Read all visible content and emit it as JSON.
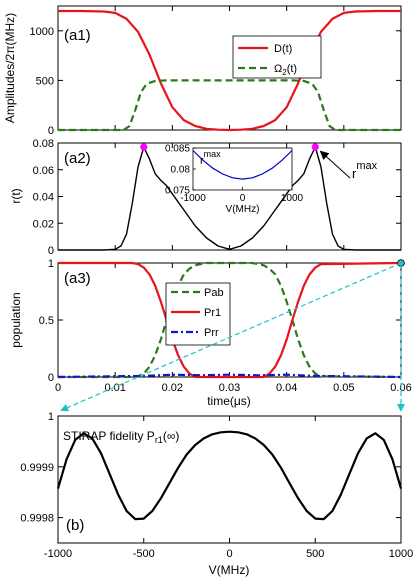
{
  "chart_data": [
    {
      "type": "line",
      "panel_label": "(a1)",
      "ylabel": "Amplitudes/2π(MHz)",
      "xlim": [
        0,
        0.06
      ],
      "ylim": [
        0,
        1250
      ],
      "yticks": [
        "0",
        "500",
        "1000"
      ],
      "legend": "top-right",
      "series": [
        {
          "name": "D(t)",
          "color": "#e8141b",
          "style": "solid",
          "x": [
            0,
            0.004,
            0.008,
            0.01,
            0.012,
            0.014,
            0.016,
            0.018,
            0.02,
            0.022,
            0.024,
            0.026,
            0.028,
            0.03,
            0.032,
            0.034,
            0.036,
            0.038,
            0.04,
            0.042,
            0.044,
            0.046,
            0.048,
            0.05,
            0.052,
            0.056,
            0.06
          ],
          "y": [
            1200,
            1200,
            1195,
            1180,
            1120,
            990,
            760,
            470,
            230,
            100,
            40,
            12,
            3,
            0,
            3,
            12,
            40,
            100,
            230,
            470,
            760,
            990,
            1120,
            1180,
            1195,
            1200,
            1200
          ]
        },
        {
          "name": "Ω2(t)",
          "color": "#2a7a1a",
          "style": "dashed",
          "x": [
            0,
            0.0115,
            0.0125,
            0.0135,
            0.0145,
            0.0155,
            0.017,
            0.019,
            0.041,
            0.043,
            0.0445,
            0.0455,
            0.0465,
            0.0475,
            0.0485,
            0.06
          ],
          "y": [
            0,
            0,
            40,
            200,
            380,
            465,
            495,
            500,
            500,
            495,
            465,
            380,
            200,
            40,
            0,
            0
          ]
        }
      ]
    },
    {
      "type": "line",
      "panel_label": "(a2)",
      "ylabel": "r(t)",
      "xlim": [
        0,
        0.06
      ],
      "ylim": [
        0,
        0.08
      ],
      "yticks": [
        "0",
        "0.02",
        "0.04",
        "0.06",
        "0.08"
      ],
      "series": [
        {
          "name": "",
          "color": "#000000",
          "style": "solid",
          "x": [
            0,
            0.008,
            0.01,
            0.011,
            0.012,
            0.013,
            0.014,
            0.015,
            0.016,
            0.017,
            0.018,
            0.019,
            0.02,
            0.022,
            0.024,
            0.026,
            0.028,
            0.03,
            0.032,
            0.034,
            0.036,
            0.038,
            0.04,
            0.041,
            0.042,
            0.043,
            0.044,
            0.045,
            0.046,
            0.047,
            0.048,
            0.049,
            0.05,
            0.052,
            0.06
          ],
          "y": [
            0,
            0,
            0.0005,
            0.003,
            0.012,
            0.035,
            0.062,
            0.077,
            0.068,
            0.057,
            0.052,
            0.048,
            0.042,
            0.03,
            0.018,
            0.009,
            0.003,
            0.0005,
            0.003,
            0.009,
            0.018,
            0.03,
            0.042,
            0.048,
            0.052,
            0.057,
            0.068,
            0.077,
            0.062,
            0.035,
            0.012,
            0.003,
            0.0005,
            0,
            0
          ]
        }
      ],
      "markers": [
        {
          "x": 0.015,
          "y": 0.077,
          "color": "#ff00ff"
        },
        {
          "x": 0.045,
          "y": 0.077,
          "color": "#ff00ff"
        }
      ],
      "annotation": {
        "text": "r",
        "superscript": "max",
        "x": 0.045,
        "y": 0.077
      },
      "inset": {
        "type": "line",
        "xlabel": "V(MHz)",
        "xlim": [
          -1000,
          1000
        ],
        "ylim": [
          0.075,
          0.085
        ],
        "xticks": [
          "-1000",
          "0",
          "1000"
        ],
        "yticks": [
          "0.075",
          "0.08",
          "0.085"
        ],
        "label": "r",
        "label_superscript": "max",
        "series": [
          {
            "name": "",
            "color": "#0000cc",
            "style": "solid",
            "x": [
              -1000,
              -800,
              -600,
              -400,
              -200,
              0,
              200,
              400,
              600,
              800,
              1000
            ],
            "y": [
              0.0844,
              0.0821,
              0.0802,
              0.0788,
              0.0779,
              0.0776,
              0.0779,
              0.0788,
              0.0802,
              0.0821,
              0.0844
            ]
          }
        ]
      }
    },
    {
      "type": "line",
      "panel_label": "(a3)",
      "ylabel": "population",
      "xlabel": "time(μs)",
      "xlim": [
        0,
        0.06
      ],
      "ylim": [
        0,
        1
      ],
      "xticks": [
        "0",
        "0.01",
        "0.02",
        "0.03",
        "0.04",
        "0.05",
        "0.06"
      ],
      "yticks": [
        "0",
        "0.5",
        "1"
      ],
      "legend": "top-center",
      "series": [
        {
          "name": "Pab",
          "color": "#2a7a1a",
          "style": "dashed",
          "x": [
            0,
            0.013,
            0.014,
            0.015,
            0.016,
            0.017,
            0.018,
            0.019,
            0.02,
            0.021,
            0.022,
            0.023,
            0.024,
            0.025,
            0.026,
            0.034,
            0.035,
            0.036,
            0.037,
            0.038,
            0.039,
            0.04,
            0.041,
            0.042,
            0.043,
            0.044,
            0.045,
            0.046,
            0.06
          ],
          "y": [
            0,
            0,
            0.005,
            0.03,
            0.09,
            0.19,
            0.33,
            0.5,
            0.66,
            0.8,
            0.9,
            0.95,
            0.98,
            0.99,
            1.0,
            1.0,
            0.99,
            0.98,
            0.95,
            0.9,
            0.8,
            0.66,
            0.5,
            0.33,
            0.19,
            0.09,
            0.03,
            0.005,
            0
          ]
        },
        {
          "name": "Pr1",
          "color": "#e8141b",
          "style": "solid",
          "x": [
            0,
            0.013,
            0.014,
            0.015,
            0.016,
            0.017,
            0.018,
            0.019,
            0.02,
            0.021,
            0.022,
            0.023,
            0.024,
            0.036,
            0.037,
            0.038,
            0.039,
            0.04,
            0.041,
            0.042,
            0.043,
            0.044,
            0.045,
            0.046,
            0.06
          ],
          "y": [
            1,
            1,
            0.99,
            0.96,
            0.9,
            0.8,
            0.66,
            0.5,
            0.33,
            0.19,
            0.09,
            0.03,
            0,
            0,
            0.03,
            0.09,
            0.19,
            0.33,
            0.5,
            0.66,
            0.8,
            0.9,
            0.96,
            0.99,
            1
          ]
        },
        {
          "name": "Prr",
          "color": "#1414c8",
          "style": "dashdot",
          "x": [
            0,
            0.015,
            0.02,
            0.025,
            0.03,
            0.035,
            0.04,
            0.045,
            0.06
          ],
          "y": [
            0,
            0.01,
            0.02,
            0.015,
            0.02,
            0.015,
            0.02,
            0.01,
            0
          ]
        }
      ],
      "marker": {
        "x": 0.06,
        "y": 1,
        "color": "#20c0c8"
      }
    },
    {
      "type": "line",
      "panel_label": "(b)",
      "title_text": "STIRAP fidelity P",
      "title_subscript": "r1",
      "title_suffix": "(∞)",
      "xlabel": "V(MHz)",
      "xlim": [
        -1000,
        1000
      ],
      "ylim": [
        0.99975,
        1.0
      ],
      "xticks": [
        "-1000",
        "-500",
        "0",
        "500",
        "1000"
      ],
      "yticks": [
        "0.9998",
        "0.9999",
        "1"
      ],
      "series": [
        {
          "name": "",
          "color": "#000000",
          "style": "solid",
          "x": [
            -1000,
            -950,
            -900,
            -850,
            -800,
            -750,
            -700,
            -650,
            -600,
            -550,
            -500,
            -450,
            -400,
            -350,
            -300,
            -250,
            -200,
            -150,
            -100,
            -50,
            0,
            50,
            100,
            150,
            200,
            250,
            300,
            350,
            400,
            450,
            500,
            550,
            600,
            650,
            700,
            750,
            800,
            850,
            900,
            950,
            1000
          ],
          "y": [
            0.999857,
            0.999915,
            0.999953,
            0.999966,
            0.999956,
            0.999927,
            0.999887,
            0.999846,
            0.999813,
            0.999797,
            0.999798,
            0.999813,
            0.999838,
            0.999868,
            0.999898,
            0.999924,
            0.999943,
            0.999956,
            0.999964,
            0.999968,
            0.999969,
            0.999968,
            0.999964,
            0.999956,
            0.999943,
            0.999924,
            0.999898,
            0.999868,
            0.999838,
            0.999813,
            0.999798,
            0.999797,
            0.999813,
            0.999846,
            0.999887,
            0.999927,
            0.999956,
            0.999966,
            0.999953,
            0.999915,
            0.999857
          ]
        }
      ]
    }
  ],
  "connector_color": "#20c0c8"
}
